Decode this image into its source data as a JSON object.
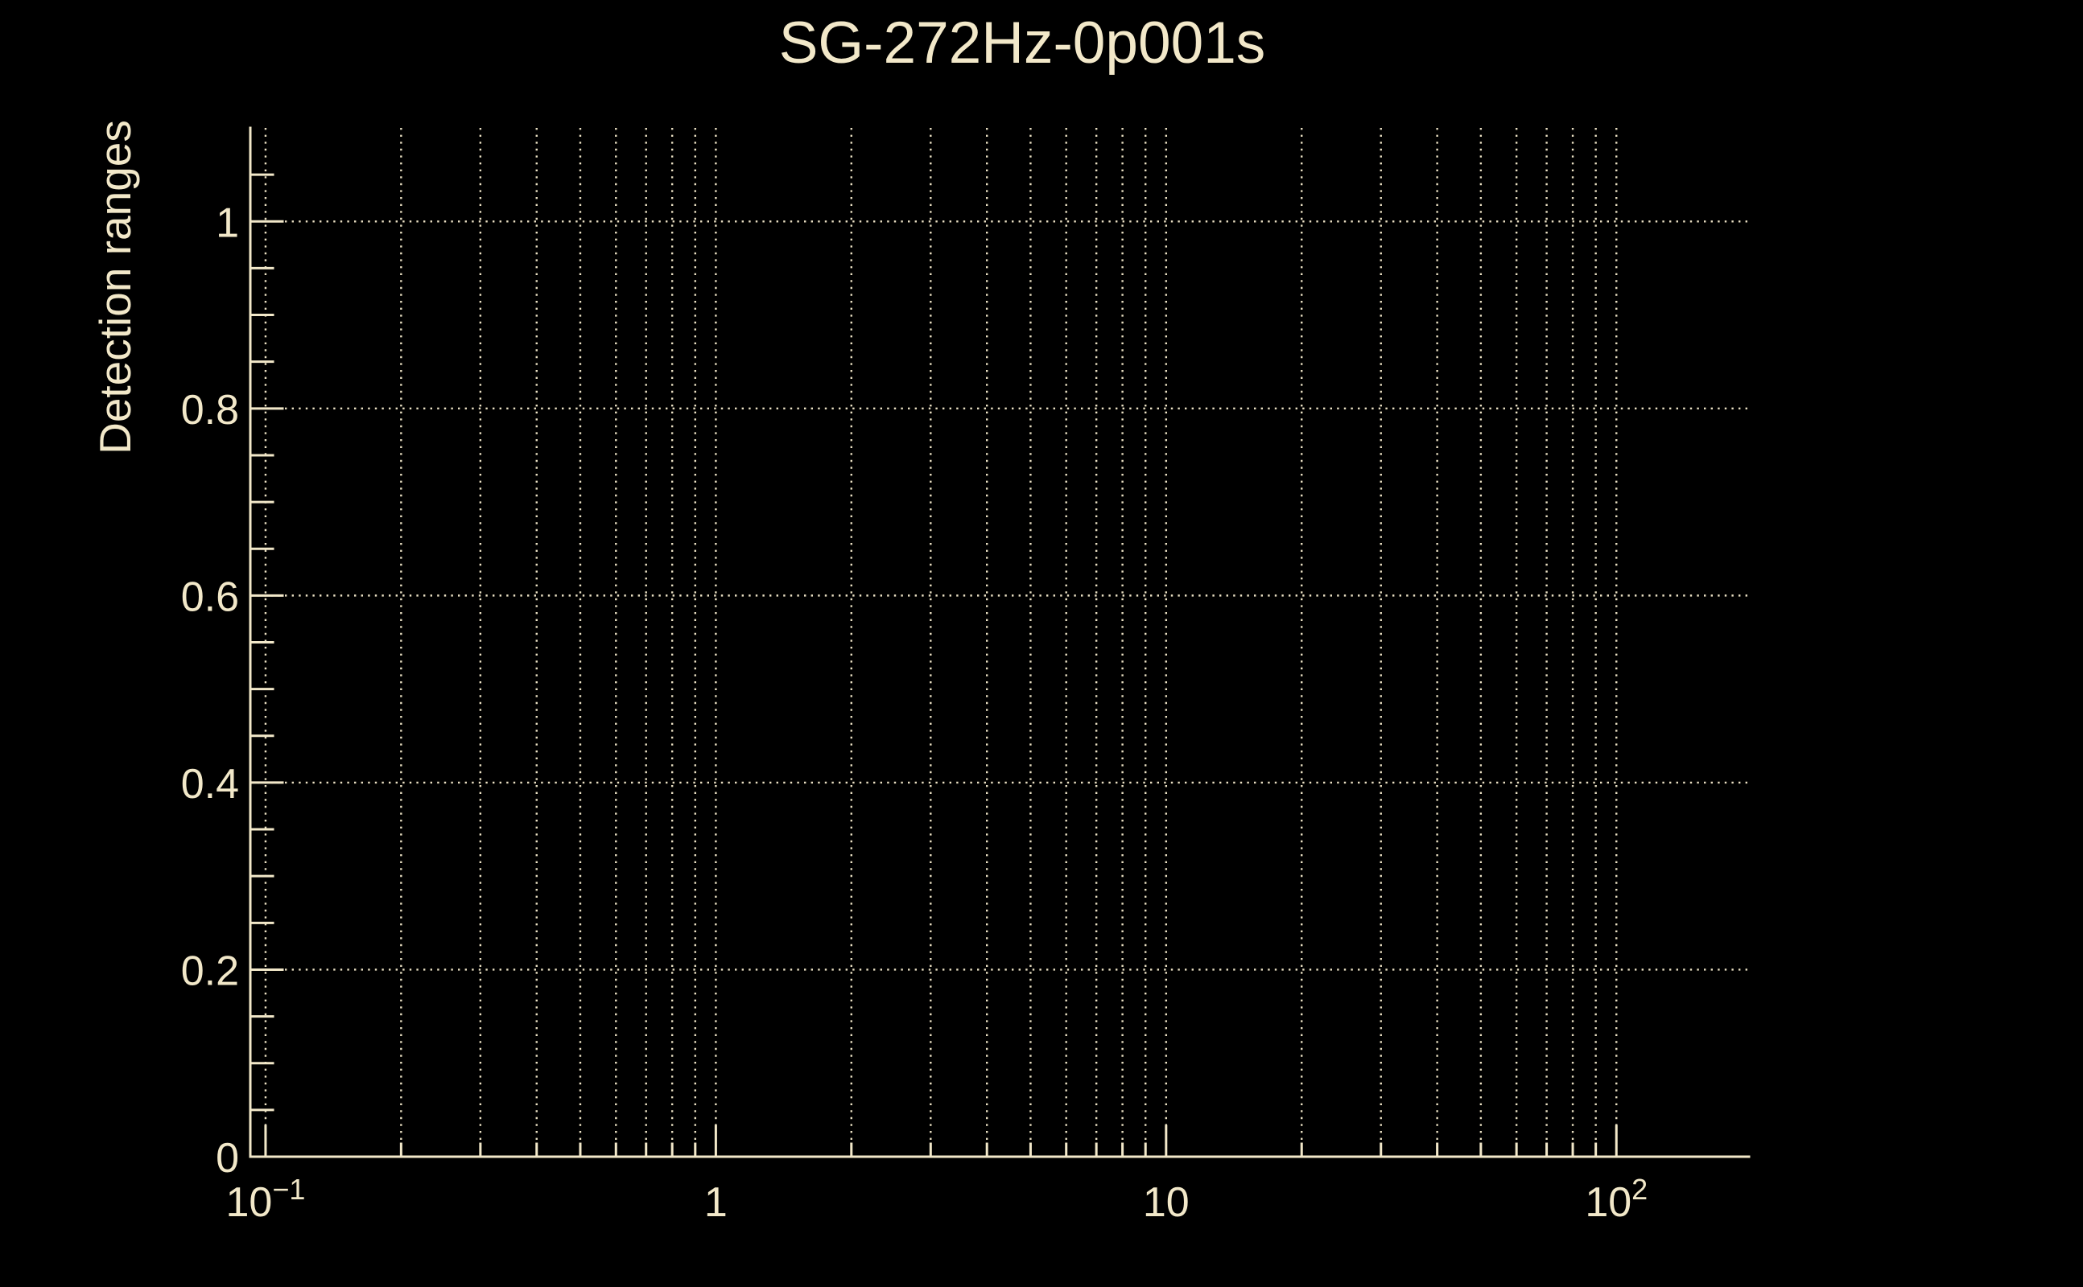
{
  "figure": {
    "title": "SG-272Hz-0p001s",
    "background": "#000000",
    "foreground": "#F2E8C9",
    "grid_color": "#EBE1C4"
  },
  "chart_data": {
    "type": "line",
    "title": "SG-272Hz-0p001s",
    "xlabel": "",
    "ylabel": "Detection ranges",
    "xscale": "log",
    "yscale": "linear",
    "xlim": [
      0.0925,
      197
    ],
    "ylim": [
      0,
      1.1
    ],
    "x_ticks": [
      {
        "value": 0.1,
        "base": "10",
        "exp": "−1"
      },
      {
        "value": 1,
        "label": "1"
      },
      {
        "value": 10,
        "label": "10"
      },
      {
        "value": 100,
        "base": "10",
        "exp": "2"
      }
    ],
    "x_minor_ticks_per_decade": [
      2,
      3,
      4,
      5,
      6,
      7,
      8,
      9
    ],
    "y_ticks": [
      {
        "value": 0,
        "label": "0"
      },
      {
        "value": 0.2,
        "label": "0.2"
      },
      {
        "value": 0.4,
        "label": "0.4"
      },
      {
        "value": 0.6,
        "label": "0.6"
      },
      {
        "value": 0.8,
        "label": "0.8"
      },
      {
        "value": 1,
        "label": "1"
      }
    ],
    "y_minor_tick_step": 0.05,
    "grid": "on",
    "grid_style": "dotted",
    "minor_grid_x": "on",
    "minor_grid_y": "off",
    "legend": null,
    "series": []
  }
}
